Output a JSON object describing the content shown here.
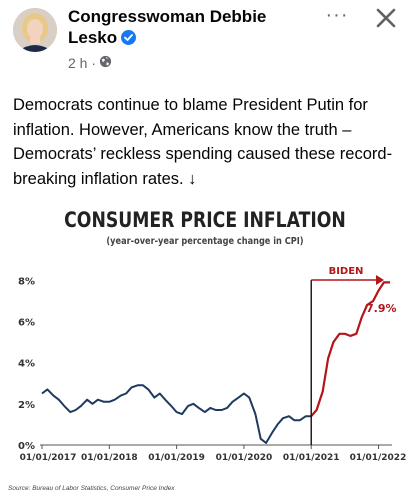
{
  "post": {
    "author": "Congresswoman Debbie Lesko",
    "time": "2 h ·",
    "text": "Democrats continue to blame President Putin for inflation. However, Americans know the truth – Democrats’ reckless spending caused these record-breaking inflation rates. ↓",
    "more_label": "···"
  },
  "icons": {
    "verified": "verified-badge-icon",
    "audience": "globe-icon",
    "close": "close-icon",
    "more": "more-options-icon"
  },
  "colors": {
    "line": "#1f3a5f",
    "highlight": "#b3151b",
    "badge": "#1877f2"
  },
  "chart_data": {
    "type": "line",
    "title": "CONSUMER PRICE INFLATION",
    "subtitle": "(year-over-year percentage change in CPI)",
    "y_tick_labels": [
      "0%",
      "2%",
      "4%",
      "6%",
      "8%"
    ],
    "x_tick_labels": [
      "01/01/2017",
      "01/01/2018",
      "01/01/2019",
      "01/01/2020",
      "01/01/2021",
      "01/01/2022"
    ],
    "ylim": [
      0,
      8.5
    ],
    "xlim": [
      2017.0,
      2022.2
    ],
    "grid": false,
    "annotation_label": "BIDEN",
    "end_value_label": "7.9%",
    "source": "Source: Bureau of Labor Statistics, Consumer Price Index",
    "series": [
      {
        "segment": "before",
        "x": [
          2017.0,
          2017.08,
          2017.17,
          2017.25,
          2017.33,
          2017.42,
          2017.5,
          2017.58,
          2017.67,
          2017.75,
          2017.83,
          2017.92,
          2018.0,
          2018.08,
          2018.17,
          2018.25,
          2018.33,
          2018.42,
          2018.5,
          2018.58,
          2018.67,
          2018.75,
          2018.83,
          2018.92,
          2019.0,
          2019.08,
          2019.17,
          2019.25,
          2019.33,
          2019.42,
          2019.5,
          2019.58,
          2019.67,
          2019.75,
          2019.83,
          2019.92,
          2020.0,
          2020.08,
          2020.17,
          2020.25,
          2020.33,
          2020.42,
          2020.5,
          2020.58,
          2020.67,
          2020.75,
          2020.83,
          2020.92,
          2021.0
        ],
        "y": [
          2.5,
          2.7,
          2.4,
          2.2,
          1.9,
          1.6,
          1.7,
          1.9,
          2.2,
          2.0,
          2.2,
          2.1,
          2.1,
          2.2,
          2.4,
          2.5,
          2.8,
          2.9,
          2.9,
          2.7,
          2.3,
          2.5,
          2.2,
          1.9,
          1.6,
          1.5,
          1.9,
          2.0,
          1.8,
          1.6,
          1.8,
          1.7,
          1.7,
          1.8,
          2.1,
          2.3,
          2.5,
          2.3,
          1.5,
          0.3,
          0.1,
          0.6,
          1.0,
          1.3,
          1.4,
          1.2,
          1.2,
          1.4,
          1.4
        ]
      },
      {
        "segment": "after",
        "x": [
          2021.0,
          2021.08,
          2021.17,
          2021.25,
          2021.33,
          2021.42,
          2021.5,
          2021.58,
          2021.67,
          2021.75,
          2021.83,
          2021.92,
          2022.0,
          2022.08,
          2022.17
        ],
        "y": [
          1.4,
          1.7,
          2.6,
          4.2,
          5.0,
          5.4,
          5.4,
          5.3,
          5.4,
          6.2,
          6.8,
          7.0,
          7.5,
          7.9,
          7.9
        ]
      }
    ]
  }
}
